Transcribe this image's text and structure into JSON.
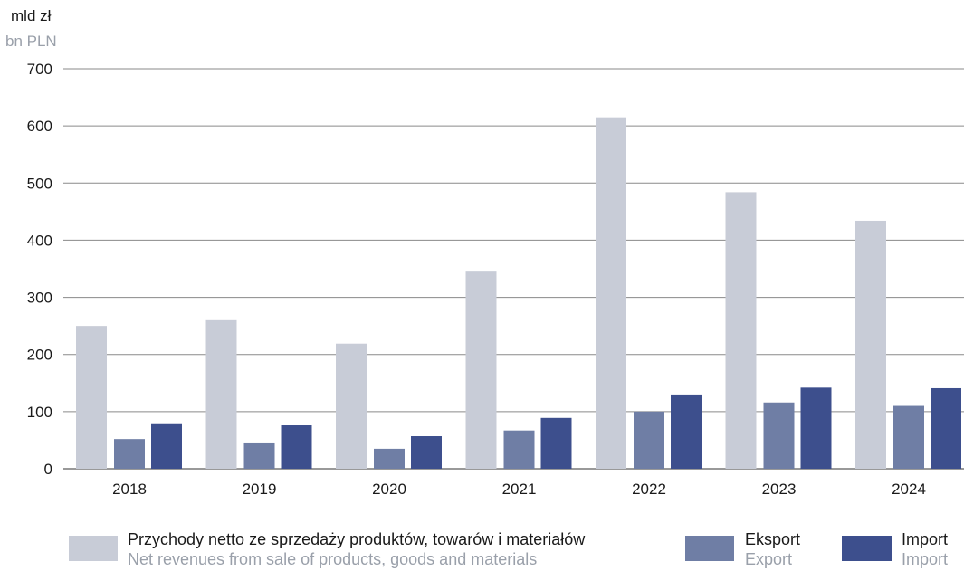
{
  "chart_data": {
    "type": "bar",
    "unit_pl": "mld zł",
    "unit_en": "bn PLN",
    "categories": [
      "2018",
      "2019",
      "2020",
      "2021",
      "2022",
      "2023",
      "2024"
    ],
    "ylim": [
      0,
      700
    ],
    "yticks": [
      "0",
      "100",
      "200",
      "300",
      "400",
      "500",
      "600",
      "700"
    ],
    "grid": true,
    "legend_position": "bottom",
    "series": [
      {
        "name": "Przychody netto ze sprzedaży produktów, towarów i materiałów",
        "name_en": "Net revenues from sale of products, goods and materials",
        "color": "#c8ccd7",
        "values": [
          250,
          260,
          219,
          345,
          615,
          484,
          434
        ]
      },
      {
        "name": "Eksport",
        "name_en": "Export",
        "color": "#6f7ea5",
        "values": [
          52,
          46,
          35,
          67,
          100,
          116,
          110
        ]
      },
      {
        "name": "Import",
        "name_en": "Import",
        "color": "#3d4f8d",
        "values": [
          78,
          76,
          57,
          89,
          130,
          142,
          141
        ]
      }
    ]
  }
}
